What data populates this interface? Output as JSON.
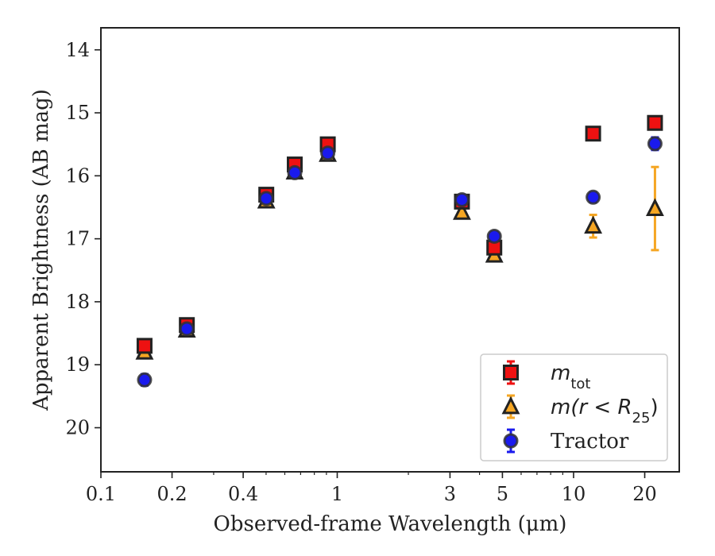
{
  "chart_data": {
    "type": "scatter",
    "xlabel": "Observed-frame Wavelength (μm)",
    "ylabel": "Apparent Brightness (AB mag)",
    "xscale": "log",
    "xlim": [
      0.1,
      28
    ],
    "ylim": [
      20.7,
      13.65
    ],
    "y_inverted": true,
    "x_ticks": [
      {
        "value": 0.1,
        "label": "0.1"
      },
      {
        "value": 0.2,
        "label": "0.2"
      },
      {
        "value": 0.4,
        "label": "0.4"
      },
      {
        "value": 1,
        "label": "1"
      },
      {
        "value": 3,
        "label": "3"
      },
      {
        "value": 5,
        "label": "5"
      },
      {
        "value": 10,
        "label": "10"
      },
      {
        "value": 20,
        "label": "20"
      }
    ],
    "y_ticks": [
      {
        "value": 14,
        "label": "14"
      },
      {
        "value": 15,
        "label": "15"
      },
      {
        "value": 16,
        "label": "16"
      },
      {
        "value": 17,
        "label": "17"
      },
      {
        "value": 18,
        "label": "18"
      },
      {
        "value": 19,
        "label": "19"
      },
      {
        "value": 20,
        "label": "20"
      }
    ],
    "grid": false,
    "legend_position": "lower-right",
    "series": [
      {
        "name": "m_tot",
        "legend": {
          "base": "m",
          "sub": "tot"
        },
        "marker": "square",
        "face_color": "#ee1111",
        "edge_color": "#222222",
        "error_color": "#ee1111",
        "points": [
          {
            "x": 0.153,
            "y": 18.7,
            "err": 0.05
          },
          {
            "x": 0.231,
            "y": 18.37,
            "err": 0.04
          },
          {
            "x": 0.501,
            "y": 16.3,
            "err": 0.03
          },
          {
            "x": 0.661,
            "y": 15.82,
            "err": 0.03
          },
          {
            "x": 0.912,
            "y": 15.5,
            "err": 0.03
          },
          {
            "x": 3.37,
            "y": 16.41,
            "err": 0.03
          },
          {
            "x": 4.62,
            "y": 17.14,
            "err": 0.04
          },
          {
            "x": 12.1,
            "y": 15.33,
            "err": 0.03
          },
          {
            "x": 22.1,
            "y": 15.16,
            "err": 0.04
          }
        ]
      },
      {
        "name": "m(r < R_25)",
        "legend": {
          "base": "m(r < R",
          "sub": "25",
          "tail": ")"
        },
        "marker": "triangle",
        "face_color": "#f5a623",
        "edge_color": "#222222",
        "error_color": "#f5a623",
        "points": [
          {
            "x": 0.153,
            "y": 18.8,
            "err": 0.03
          },
          {
            "x": 0.231,
            "y": 18.45,
            "err": 0.03
          },
          {
            "x": 0.501,
            "y": 16.4,
            "err": 0.02
          },
          {
            "x": 0.661,
            "y": 15.94,
            "err": 0.02
          },
          {
            "x": 0.912,
            "y": 15.66,
            "err": 0.02
          },
          {
            "x": 3.37,
            "y": 16.58,
            "err": 0.03
          },
          {
            "x": 4.62,
            "y": 17.26,
            "err": 0.03
          },
          {
            "x": 12.1,
            "y": 16.8,
            "err": 0.18
          },
          {
            "x": 22.1,
            "y": 16.52,
            "err": 0.66
          }
        ]
      },
      {
        "name": "Tractor",
        "legend": {
          "base": "Tractor"
        },
        "marker": "circle",
        "face_color": "#1a1aee",
        "edge_color": "#333333",
        "error_color": "#1a1aee",
        "points": [
          {
            "x": 0.153,
            "y": 19.24,
            "err": 0.09
          },
          {
            "x": 0.231,
            "y": 18.43,
            "err": 0.05
          },
          {
            "x": 0.501,
            "y": 16.36,
            "err": 0.03
          },
          {
            "x": 0.661,
            "y": 15.95,
            "err": 0.03
          },
          {
            "x": 0.912,
            "y": 15.64,
            "err": 0.03
          },
          {
            "x": 3.37,
            "y": 16.38,
            "err": 0.08
          },
          {
            "x": 4.62,
            "y": 16.96,
            "err": 0.07
          },
          {
            "x": 12.1,
            "y": 16.34,
            "err": 0.08
          },
          {
            "x": 22.1,
            "y": 15.49,
            "err": 0.1
          }
        ]
      }
    ]
  }
}
